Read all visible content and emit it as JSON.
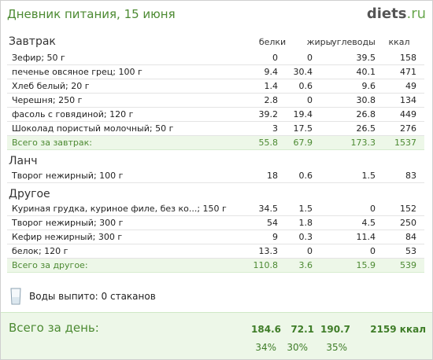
{
  "header": {
    "title": "Дневник питания, 15 июня",
    "logo_main": "diets",
    "logo_tld": ".ru"
  },
  "columns": {
    "protein": "белки",
    "fat": "жиры",
    "carbs": "углеводы",
    "kcal": "ккал"
  },
  "sections": {
    "breakfast": {
      "title": "Завтрак",
      "items": [
        {
          "name": "Зефир; 50 г",
          "protein": "0",
          "fat": "0",
          "carbs": "39.5",
          "kcal": "158"
        },
        {
          "name": "печенье овсяное грец; 100 г",
          "protein": "9.4",
          "fat": "30.4",
          "carbs": "40.1",
          "kcal": "471"
        },
        {
          "name": "Хлеб белый; 20 г",
          "protein": "1.4",
          "fat": "0.6",
          "carbs": "9.6",
          "kcal": "49"
        },
        {
          "name": "Черешня; 250 г",
          "protein": "2.8",
          "fat": "0",
          "carbs": "30.8",
          "kcal": "134"
        },
        {
          "name": "фасоль с говядиной; 120 г",
          "protein": "39.2",
          "fat": "19.4",
          "carbs": "26.8",
          "kcal": "449"
        },
        {
          "name": "Шоколад пористый молочный; 50 г",
          "protein": "3",
          "fat": "17.5",
          "carbs": "26.5",
          "kcal": "276"
        }
      ],
      "total": {
        "name": "Всего за завтрак:",
        "protein": "55.8",
        "fat": "67.9",
        "carbs": "173.3",
        "kcal": "1537"
      }
    },
    "lunch": {
      "title": "Ланч",
      "items": [
        {
          "name": "Творог нежирный; 100 г",
          "protein": "18",
          "fat": "0.6",
          "carbs": "1.5",
          "kcal": "83"
        }
      ]
    },
    "other": {
      "title": "Другое",
      "items": [
        {
          "name": "Куриная грудка, куриное филе, без ко...; 150 г",
          "protein": "34.5",
          "fat": "1.5",
          "carbs": "0",
          "kcal": "152"
        },
        {
          "name": "Творог нежирный; 300 г",
          "protein": "54",
          "fat": "1.8",
          "carbs": "4.5",
          "kcal": "250"
        },
        {
          "name": "Кефир нежирный; 300 г",
          "protein": "9",
          "fat": "0.3",
          "carbs": "11.4",
          "kcal": "84"
        },
        {
          "name": "белок; 120 г",
          "protein": "13.3",
          "fat": "0",
          "carbs": "0",
          "kcal": "53"
        }
      ],
      "total": {
        "name": "Всего за другое:",
        "protein": "110.8",
        "fat": "3.6",
        "carbs": "15.9",
        "kcal": "539"
      }
    }
  },
  "water": {
    "icon": "glass-icon",
    "label": "Воды выпито: 0 стаканов"
  },
  "day_total": {
    "label": "Всего за день:",
    "protein": "184.6",
    "fat": "72.1",
    "carbs": "190.7",
    "kcal": "2159 ккал",
    "protein_pct": "34%",
    "fat_pct": "30%",
    "carbs_pct": "35%"
  },
  "colors": {
    "accent": "#4c8a32",
    "total_bg": "#edf7e8"
  }
}
